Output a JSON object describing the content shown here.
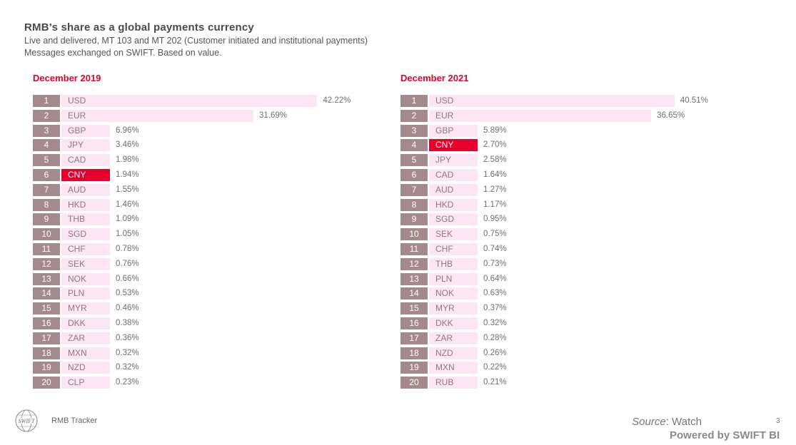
{
  "header": {
    "title": "RMB’s share as a global payments currency",
    "subtitle_line1": "Live and delivered,  MT 103 and MT 202 (Customer initiated and institutional payments)",
    "subtitle_line2": "Messages exchanged on SWIFT. Based on value."
  },
  "chart_data": [
    {
      "type": "bar",
      "orientation": "horizontal",
      "title": "December 2019",
      "highlight": "CNY",
      "xlim": [
        0,
        45
      ],
      "ranks": [
        "1",
        "2",
        "3",
        "4",
        "5",
        "6",
        "7",
        "8",
        "9",
        "10",
        "11",
        "12",
        "13",
        "14",
        "15",
        "16",
        "17",
        "18",
        "19",
        "20"
      ],
      "categories": [
        "USD",
        "EUR",
        "GBP",
        "JPY",
        "CAD",
        "CNY",
        "AUD",
        "HKD",
        "THB",
        "SGD",
        "CHF",
        "SEK",
        "NOK",
        "PLN",
        "MYR",
        "DKK",
        "ZAR",
        "MXN",
        "NZD",
        "CLP"
      ],
      "values": [
        42.22,
        31.69,
        6.96,
        3.46,
        1.98,
        1.94,
        1.55,
        1.46,
        1.09,
        1.05,
        0.78,
        0.76,
        0.66,
        0.53,
        0.46,
        0.38,
        0.36,
        0.32,
        0.32,
        0.23
      ],
      "value_labels": [
        "42.22%",
        "31.69%",
        "6.96%",
        "3.46%",
        "1.98%",
        "1.94%",
        "1.55%",
        "1.46%",
        "1.09%",
        "1.05%",
        "0.78%",
        "0.76%",
        "0.66%",
        "0.53%",
        "0.46%",
        "0.38%",
        "0.36%",
        "0.32%",
        "0.32%",
        "0.23%"
      ]
    },
    {
      "type": "bar",
      "orientation": "horizontal",
      "title": "December 2021",
      "highlight": "CNY",
      "xlim": [
        0,
        45
      ],
      "ranks": [
        "1",
        "2",
        "3",
        "4",
        "5",
        "6",
        "7",
        "8",
        "9",
        "10",
        "11",
        "12",
        "13",
        "14",
        "15",
        "16",
        "17",
        "18",
        "19",
        "20"
      ],
      "categories": [
        "USD",
        "EUR",
        "GBP",
        "CNY",
        "JPY",
        "CAD",
        "AUD",
        "HKD",
        "SGD",
        "SEK",
        "CHF",
        "THB",
        "PLN",
        "NOK",
        "MYR",
        "DKK",
        "ZAR",
        "NZD",
        "MXN",
        "RUB"
      ],
      "values": [
        40.51,
        36.65,
        5.89,
        2.7,
        2.58,
        1.64,
        1.27,
        1.17,
        0.95,
        0.75,
        0.74,
        0.73,
        0.64,
        0.63,
        0.37,
        0.32,
        0.28,
        0.26,
        0.22,
        0.21
      ],
      "value_labels": [
        "40.51%",
        "36.65%",
        "5.89%",
        "2.70%",
        "2.58%",
        "1.64%",
        "1.27%",
        "1.17%",
        "0.95%",
        "0.75%",
        "0.74%",
        "0.73%",
        "0.64%",
        "0.63%",
        "0.37%",
        "0.32%",
        "0.28%",
        "0.26%",
        "0.22%",
        "0.21%"
      ]
    }
  ],
  "colors": {
    "bar": "#fde6f3",
    "highlight_bar": "#e8002c",
    "rank_box": "#a48a8d",
    "chart_title": "#e2002e"
  },
  "footer": {
    "logo_text": "SWIFT",
    "label": "RMB Tracker",
    "source_label": "Source",
    "source_value": ": Watch",
    "page_number": "3",
    "powered_by": "Powered by SWIFT BI"
  }
}
